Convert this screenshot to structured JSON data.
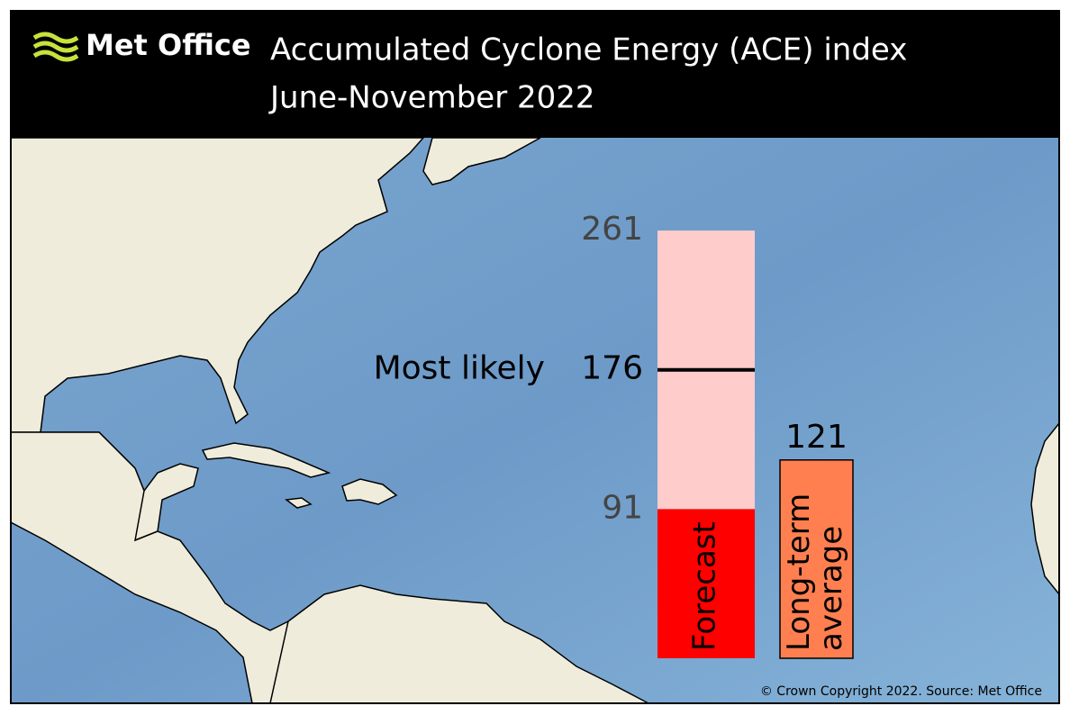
{
  "header": {
    "logo": "Met Office",
    "title": "Accumulated Cyclone Energy (ACE) index",
    "subtitle": "June-November 2022"
  },
  "chart_data": {
    "type": "range-bar",
    "ylim": [
      0,
      261
    ],
    "forecast": {
      "label": "Forecast",
      "low": 91,
      "high": 261,
      "most_likely": 176,
      "most_likely_label": "Most likely",
      "color": "#ff0000",
      "range_color": "#ffcccc"
    },
    "average": {
      "label_lines": [
        "Long-term",
        "average"
      ],
      "value": 121,
      "color": "#ff7f50"
    }
  },
  "source": "© Crown Copyright 2022. Source: Met Office"
}
